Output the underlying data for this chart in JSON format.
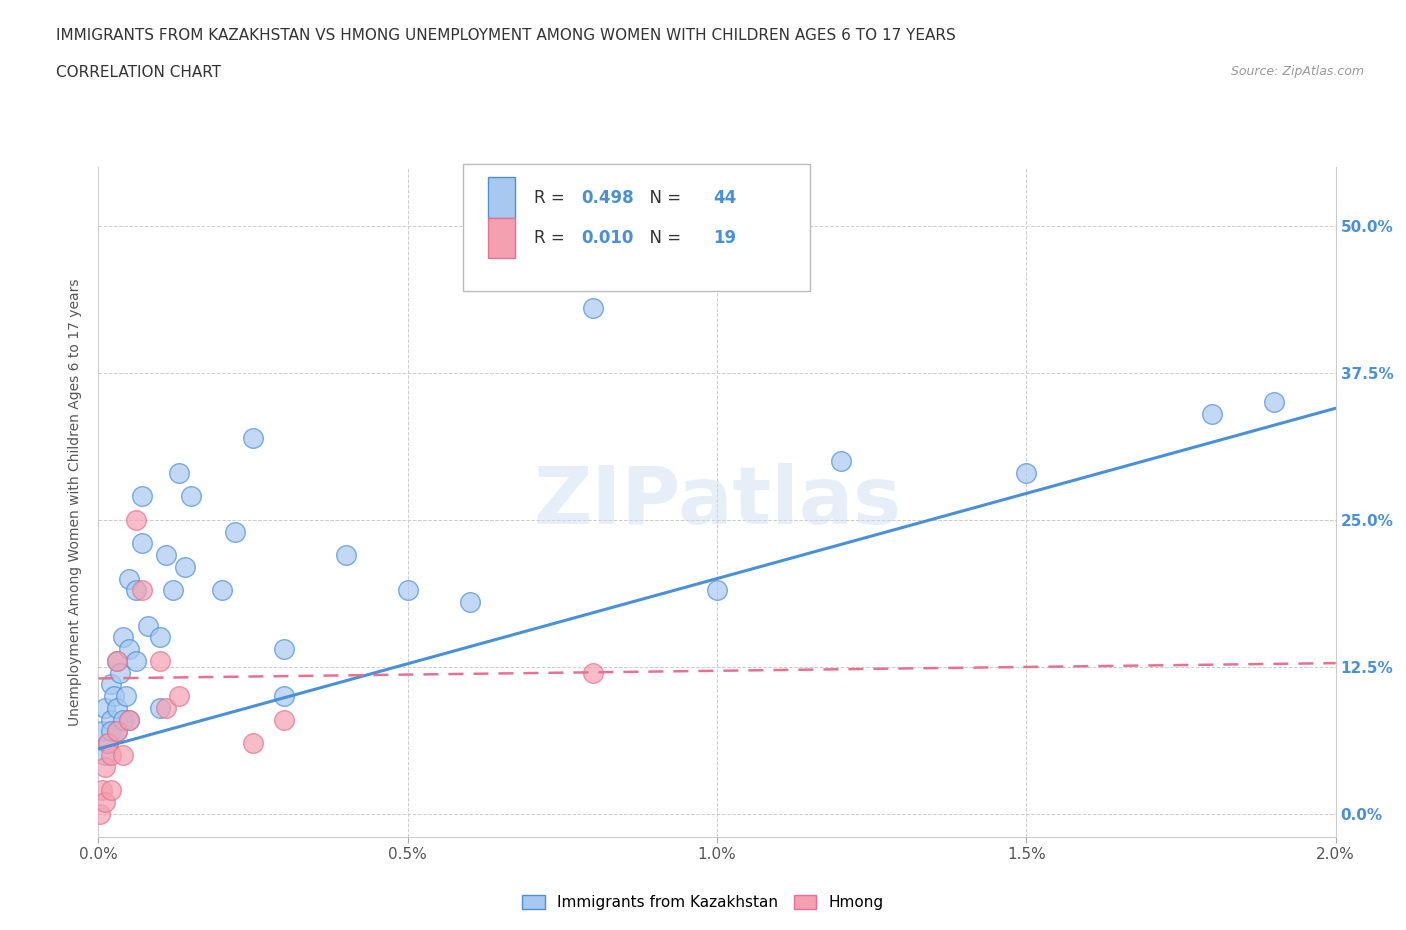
{
  "title_line1": "IMMIGRANTS FROM KAZAKHSTAN VS HMONG UNEMPLOYMENT AMONG WOMEN WITH CHILDREN AGES 6 TO 17 YEARS",
  "title_line2": "CORRELATION CHART",
  "source": "Source: ZipAtlas.com",
  "ylabel": "Unemployment Among Women with Children Ages 6 to 17 years",
  "xlim": [
    0.0,
    0.02
  ],
  "ylim": [
    -0.02,
    0.55
  ],
  "xtick_labels": [
    "0.0%",
    "0.5%",
    "1.0%",
    "1.5%",
    "2.0%"
  ],
  "xtick_vals": [
    0.0,
    0.005,
    0.01,
    0.015,
    0.02
  ],
  "ytick_labels": [
    "0.0%",
    "12.5%",
    "25.0%",
    "37.5%",
    "50.0%"
  ],
  "ytick_vals": [
    0.0,
    0.125,
    0.25,
    0.375,
    0.5
  ],
  "watermark": "ZIPatlas",
  "blue_R": 0.498,
  "blue_N": 44,
  "pink_R": 0.01,
  "pink_N": 19,
  "blue_color": "#a8c8f0",
  "pink_color": "#f4a0b0",
  "blue_line_color": "#4a90d9",
  "pink_line_color": "#e87090",
  "legend_label_blue": "Immigrants from Kazakhstan",
  "legend_label_pink": "Hmong",
  "blue_scatter_x": [
    5e-05,
    0.0001,
    0.0001,
    0.00015,
    0.0002,
    0.0002,
    0.0002,
    0.00025,
    0.0003,
    0.0003,
    0.0003,
    0.00035,
    0.0004,
    0.0004,
    0.00045,
    0.0005,
    0.0005,
    0.0005,
    0.0006,
    0.0006,
    0.0007,
    0.0007,
    0.0008,
    0.001,
    0.001,
    0.0011,
    0.0012,
    0.0013,
    0.0014,
    0.0015,
    0.002,
    0.0022,
    0.0025,
    0.003,
    0.003,
    0.004,
    0.005,
    0.006,
    0.008,
    0.01,
    0.012,
    0.015,
    0.018,
    0.019
  ],
  "blue_scatter_y": [
    0.07,
    0.05,
    0.09,
    0.06,
    0.08,
    0.11,
    0.07,
    0.1,
    0.09,
    0.13,
    0.07,
    0.12,
    0.08,
    0.15,
    0.1,
    0.14,
    0.2,
    0.08,
    0.19,
    0.13,
    0.23,
    0.27,
    0.16,
    0.09,
    0.15,
    0.22,
    0.19,
    0.29,
    0.21,
    0.27,
    0.19,
    0.24,
    0.32,
    0.14,
    0.1,
    0.22,
    0.19,
    0.18,
    0.43,
    0.19,
    0.3,
    0.29,
    0.34,
    0.35
  ],
  "pink_scatter_x": [
    3e-05,
    5e-05,
    0.0001,
    0.0001,
    0.00015,
    0.0002,
    0.0002,
    0.0003,
    0.0003,
    0.0004,
    0.0005,
    0.0006,
    0.0007,
    0.001,
    0.0011,
    0.0013,
    0.0025,
    0.003,
    0.008
  ],
  "pink_scatter_y": [
    0.0,
    0.02,
    0.04,
    0.01,
    0.06,
    0.05,
    0.02,
    0.13,
    0.07,
    0.05,
    0.08,
    0.25,
    0.19,
    0.13,
    0.09,
    0.1,
    0.06,
    0.08,
    0.12
  ],
  "blue_line_x0": 0.0,
  "blue_line_y0": 0.055,
  "blue_line_x1": 0.02,
  "blue_line_y1": 0.345,
  "pink_line_x0": 0.0,
  "pink_line_y0": 0.115,
  "pink_line_x1": 0.02,
  "pink_line_y1": 0.128
}
